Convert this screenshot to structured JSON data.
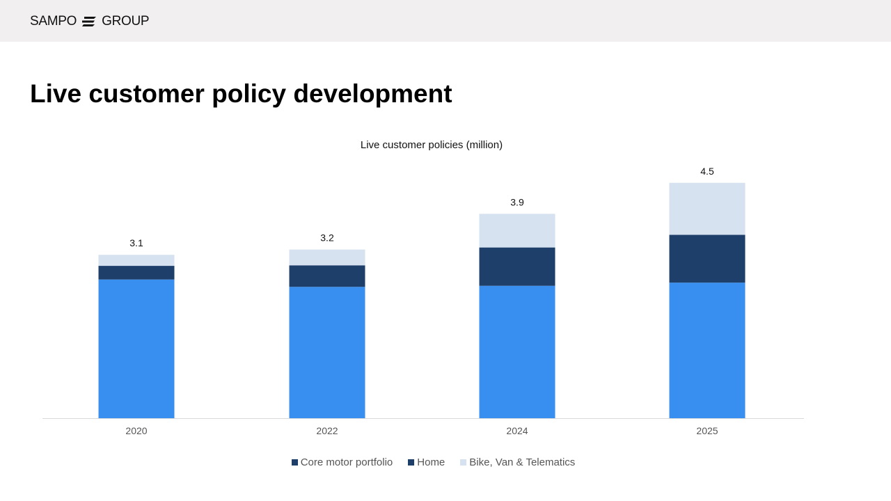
{
  "header": {
    "logo_text_left": "SAMPO",
    "logo_text_right": "GROUP"
  },
  "page_title": "Live customer policy development",
  "chart_data": {
    "type": "bar",
    "stacked": true,
    "title": "Live customer policies (million)",
    "categories": [
      "2020",
      "2022",
      "2024",
      "2025"
    ],
    "series": [
      {
        "name": "Core motor portfolio",
        "values": [
          2.64,
          2.5,
          2.52,
          2.58
        ],
        "color": "#388ff0",
        "legend_color": "#1f3f6b"
      },
      {
        "name": "Home",
        "values": [
          0.26,
          0.41,
          0.73,
          0.91
        ],
        "color": "#1f3f6b",
        "legend_color": "#1f3f6b"
      },
      {
        "name": "Bike, Van & Telematics",
        "values": [
          0.21,
          0.3,
          0.64,
          0.99
        ],
        "color": "#d6e2ef",
        "legend_color": "#d6e2ef"
      }
    ],
    "totals": [
      "3.1",
      "3.2",
      "3.9",
      "4.5"
    ],
    "legend_position": "bottom",
    "grid": false,
    "yaxis_visible": false
  }
}
